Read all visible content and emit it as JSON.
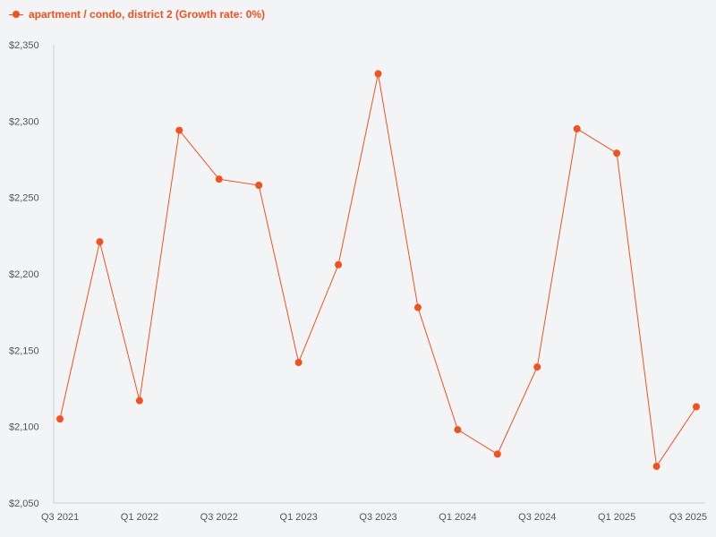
{
  "colors": {
    "series": "#f4511e",
    "axis": "#c8cce0",
    "background": "#f3f4f6"
  },
  "chart_data": {
    "type": "line",
    "title": "",
    "xlabel": "",
    "ylabel": "",
    "legend_position": "top-left",
    "grid": false,
    "ylim": [
      2050,
      2350
    ],
    "y_ticks": [
      2050,
      2100,
      2150,
      2200,
      2250,
      2300,
      2350
    ],
    "y_tick_labels": [
      "$2,050",
      "$2,100",
      "$2,150",
      "$2,200",
      "$2,250",
      "$2,300",
      "$2,350"
    ],
    "categories": [
      "Q3 2021",
      "Q4 2021",
      "Q1 2022",
      "Q2 2022",
      "Q3 2022",
      "Q4 2022",
      "Q1 2023",
      "Q2 2023",
      "Q3 2023",
      "Q4 2023",
      "Q1 2024",
      "Q2 2024",
      "Q3 2024",
      "Q4 2024",
      "Q1 2025",
      "Q2 2025",
      "Q3 2025"
    ],
    "x_tick_labels": [
      "Q3 2021",
      "",
      "Q1 2022",
      "",
      "Q3 2022",
      "",
      "Q1 2023",
      "",
      "Q3 2023",
      "",
      "Q1 2024",
      "",
      "Q3 2024",
      "",
      "Q1 2025",
      "",
      "Q3 2025"
    ],
    "series": [
      {
        "name": "apartment / condo, district 2 (Growth rate: 0%)",
        "values": [
          2105,
          2221,
          2117,
          2294,
          2262,
          2258,
          2142,
          2206,
          2331,
          2178,
          2098,
          2082,
          2139,
          2295,
          2279,
          2074,
          2113
        ]
      }
    ]
  }
}
